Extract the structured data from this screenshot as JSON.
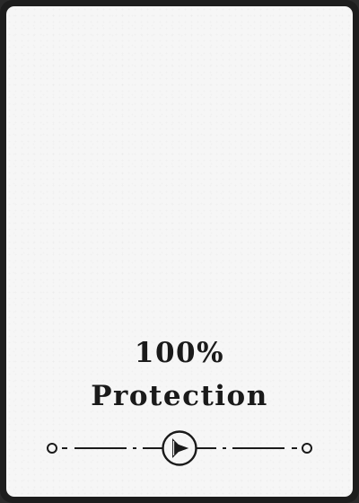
{
  "card": {
    "title_line1": "100%",
    "title_line2": "Protection",
    "divider_icon": "shield-arrow-icon"
  },
  "colors": {
    "frame": "#1d1d1d",
    "face": "#f6f6f6",
    "ink": "#1a1a1a"
  }
}
